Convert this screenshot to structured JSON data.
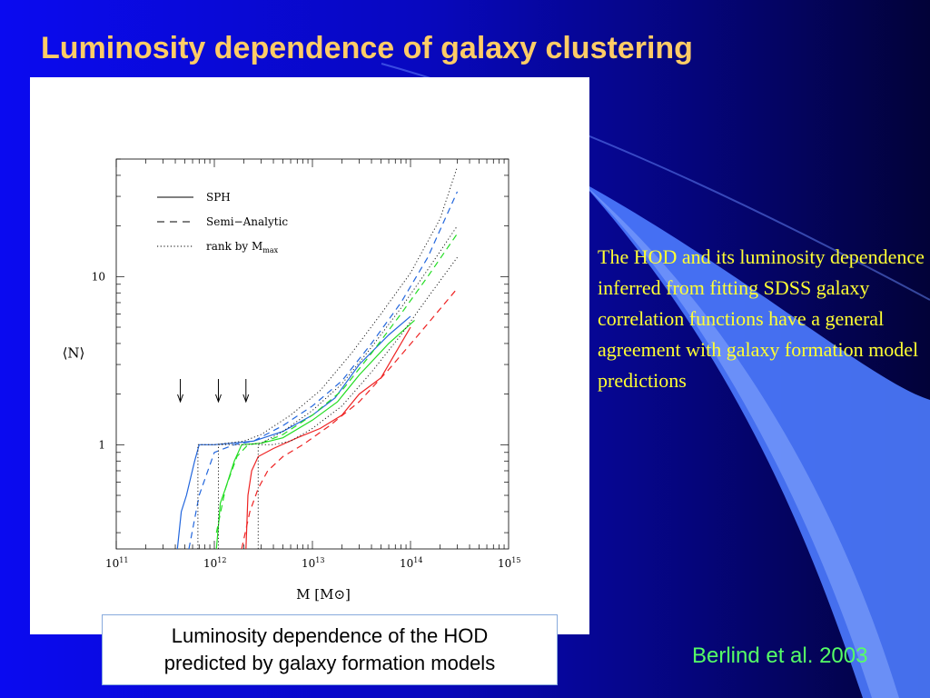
{
  "slide": {
    "title": "Luminosity dependence of galaxy clustering",
    "body_text": "The HOD and its luminosity dependence inferred from fitting SDSS galaxy correlation functions have a general agreement with galaxy formation model predictions",
    "caption_line1": "Luminosity dependence of the HOD",
    "caption_line2": "predicted by galaxy formation models",
    "citation": "Berlind et al. 2003",
    "colors": {
      "title": "#ffcc66",
      "body": "#ffff33",
      "citation": "#55ff66",
      "background": "#0808c0"
    }
  },
  "chart_data": {
    "type": "line",
    "title": "",
    "xlabel": "M [M⊙]",
    "ylabel": "⟨N⟩",
    "x_scale": "log",
    "y_scale": "log",
    "xlim": [
      100000000000.0,
      1000000000000000.0
    ],
    "ylim": [
      0.24,
      50
    ],
    "x_ticks": [
      {
        "value": 100000000000.0,
        "mantissa": "10",
        "exp": "11"
      },
      {
        "value": 1000000000000.0,
        "mantissa": "10",
        "exp": "12"
      },
      {
        "value": 10000000000000.0,
        "mantissa": "10",
        "exp": "13"
      },
      {
        "value": 100000000000000.0,
        "mantissa": "10",
        "exp": "14"
      },
      {
        "value": 1000000000000000.0,
        "mantissa": "10",
        "exp": "15"
      }
    ],
    "y_ticks": [
      {
        "value": 1,
        "label": "1"
      },
      {
        "value": 10,
        "label": "10"
      }
    ],
    "legend": {
      "placement": "top-left",
      "entries": [
        {
          "style": "solid",
          "label": "SPH",
          "sub": ""
        },
        {
          "style": "dashed",
          "label": "Semi−Analytic",
          "sub": ""
        },
        {
          "style": "dotted",
          "label": "rank by M",
          "sub": "max"
        }
      ]
    },
    "annotations": {
      "arrows_at_mass": [
        450000000000.0,
        1100000000000.0,
        2100000000000.0
      ]
    },
    "series": [
      {
        "color": "#2266dd",
        "style": "solid",
        "x": [
          420000000000.0,
          460000000000.0,
          520000000000.0,
          630000000000.0,
          700000000000.0,
          1000000000000.0,
          1500000000000.0,
          2500000000000.0,
          5000000000000.0,
          10000000000000.0,
          17000000000000.0,
          30000000000000.0,
          60000000000000.0,
          100000000000000.0
        ],
        "y": [
          0.24,
          0.4,
          0.5,
          0.8,
          1.0,
          1.0,
          1.02,
          1.05,
          1.2,
          1.5,
          1.9,
          3.0,
          4.5,
          5.8
        ]
      },
      {
        "color": "#2266dd",
        "style": "dashed",
        "x": [
          550000000000.0,
          700000000000.0,
          1000000000000.0,
          1600000000000.0,
          2500000000000.0,
          5000000000000.0,
          10000000000000.0,
          20000000000000.0,
          40000000000000.0,
          80000000000000.0,
          150000000000000.0,
          300000000000000.0
        ],
        "y": [
          0.24,
          0.5,
          0.9,
          1.0,
          1.05,
          1.3,
          1.7,
          2.4,
          4.0,
          7.0,
          13,
          32
        ]
      },
      {
        "color": "#222222",
        "style": "dotted",
        "x": [
          680000000000.0,
          680000000000.0,
          1000000000000.0,
          2000000000000.0,
          3000000000000.0,
          6000000000000.0,
          12000000000000.0,
          25000000000000.0,
          50000000000000.0,
          100000000000000.0,
          200000000000000.0,
          300000000000000.0
        ],
        "y": [
          0.24,
          1.0,
          1.0,
          1.05,
          1.15,
          1.5,
          2.1,
          3.5,
          6.0,
          10.5,
          22,
          45
        ]
      },
      {
        "color": "#22dd22",
        "style": "solid",
        "x": [
          1050000000000.0,
          1150000000000.0,
          1300000000000.0,
          1600000000000.0,
          1900000000000.0,
          3000000000000.0,
          5000000000000.0,
          10000000000000.0,
          18000000000000.0,
          30000000000000.0,
          60000000000000.0,
          110000000000000.0
        ],
        "y": [
          0.24,
          0.45,
          0.55,
          0.8,
          1.0,
          1.02,
          1.1,
          1.4,
          1.8,
          2.6,
          4.0,
          5.5
        ]
      },
      {
        "color": "#22dd22",
        "style": "dashed",
        "x": [
          1050000000000.0,
          1300000000000.0,
          1700000000000.0,
          2200000000000.0,
          3000000000000.0,
          5000000000000.0,
          10000000000000.0,
          20000000000000.0,
          40000000000000.0,
          80000000000000.0,
          150000000000000.0,
          300000000000000.0
        ],
        "y": [
          0.3,
          0.55,
          0.85,
          1.0,
          1.02,
          1.15,
          1.5,
          2.1,
          3.5,
          6.0,
          10,
          18
        ]
      },
      {
        "color": "#222222",
        "style": "dotted",
        "x": [
          1100000000000.0,
          1100000000000.0,
          2000000000000.0,
          3000000000000.0,
          5000000000000.0,
          10000000000000.0,
          20000000000000.0,
          40000000000000.0,
          80000000000000.0,
          150000000000000.0,
          300000000000000.0
        ],
        "y": [
          0.24,
          1.0,
          1.0,
          1.02,
          1.2,
          1.6,
          2.3,
          3.8,
          6.5,
          11,
          20
        ]
      },
      {
        "color": "#ee2222",
        "style": "solid",
        "x": [
          2100000000000.0,
          2200000000000.0,
          2400000000000.0,
          2800000000000.0,
          4000000000000.0,
          7000000000000.0,
          12000000000000.0,
          20000000000000.0,
          30000000000000.0,
          50000000000000.0,
          100000000000000.0
        ],
        "y": [
          0.24,
          0.5,
          0.7,
          0.85,
          0.95,
          1.1,
          1.25,
          1.5,
          2.0,
          2.5,
          5.0
        ]
      },
      {
        "color": "#ee2222",
        "style": "dashed",
        "x": [
          1900000000000.0,
          2300000000000.0,
          2800000000000.0,
          3500000000000.0,
          5000000000000.0,
          8000000000000.0,
          15000000000000.0,
          30000000000000.0,
          60000000000000.0,
          120000000000000.0,
          300000000000000.0
        ],
        "y": [
          0.24,
          0.4,
          0.55,
          0.7,
          0.85,
          1.0,
          1.3,
          1.8,
          2.8,
          4.5,
          8.5
        ]
      },
      {
        "color": "#222222",
        "style": "dotted",
        "x": [
          2800000000000.0,
          2800000000000.0,
          4000000000000.0,
          6000000000000.0,
          10000000000000.0,
          20000000000000.0,
          40000000000000.0,
          80000000000000.0,
          150000000000000.0,
          300000000000000.0
        ],
        "y": [
          0.24,
          1.0,
          1.0,
          1.05,
          1.25,
          1.7,
          2.7,
          4.5,
          7.5,
          13
        ]
      }
    ]
  }
}
